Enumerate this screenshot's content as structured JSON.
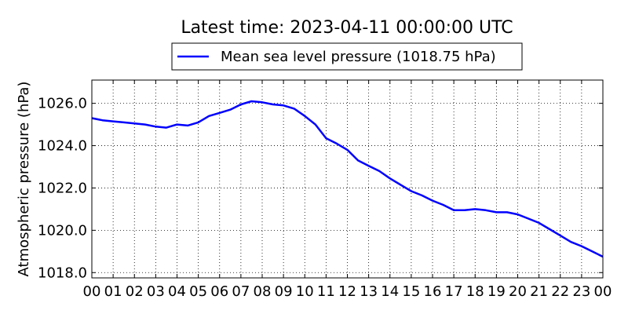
{
  "chart_data": {
    "type": "line",
    "title": "Latest time: 2023-04-11 00:00:00 UTC",
    "xlabel": "",
    "ylabel": "Atmospheric pressure (hPa)",
    "x_tick_labels": [
      "00",
      "01",
      "02",
      "03",
      "04",
      "05",
      "06",
      "07",
      "08",
      "09",
      "10",
      "11",
      "12",
      "13",
      "14",
      "15",
      "16",
      "17",
      "18",
      "19",
      "20",
      "21",
      "22",
      "23",
      "00"
    ],
    "y_ticks": [
      1018.0,
      1020.0,
      1022.0,
      1024.0,
      1026.0
    ],
    "y_tick_labels": [
      "1018.0",
      "1020.0",
      "1022.0",
      "1024.0",
      "1026.0"
    ],
    "xlim": [
      0,
      24
    ],
    "ylim": [
      1017.75,
      1027.1
    ],
    "grid": true,
    "legend_position": "top-center",
    "series": [
      {
        "name": "Mean sea level pressure (1018.75 hPa)",
        "color": "#0000ff",
        "x": [
          0,
          0.5,
          1,
          1.5,
          2,
          2.5,
          3,
          3.5,
          4,
          4.5,
          5,
          5.5,
          6,
          6.5,
          7,
          7.5,
          8,
          8.5,
          9,
          9.5,
          10,
          10.5,
          11,
          11.5,
          12,
          12.5,
          13,
          13.5,
          14,
          14.5,
          15,
          15.5,
          16,
          16.5,
          17,
          17.5,
          18,
          18.5,
          19,
          19.5,
          20,
          20.5,
          21,
          21.5,
          22,
          22.5,
          23,
          23.5,
          24
        ],
        "values": [
          1025.3,
          1025.2,
          1025.15,
          1025.1,
          1025.05,
          1025.0,
          1024.9,
          1024.85,
          1025.0,
          1024.95,
          1025.1,
          1025.4,
          1025.55,
          1025.7,
          1025.95,
          1026.1,
          1026.05,
          1025.95,
          1025.9,
          1025.75,
          1025.4,
          1025.0,
          1024.35,
          1024.1,
          1023.8,
          1023.3,
          1023.05,
          1022.8,
          1022.45,
          1022.15,
          1021.85,
          1021.65,
          1021.4,
          1021.2,
          1020.95,
          1020.95,
          1021.0,
          1020.95,
          1020.85,
          1020.85,
          1020.75,
          1020.55,
          1020.35,
          1020.05,
          1019.75,
          1019.45,
          1019.25,
          1019.0,
          1018.75
        ]
      }
    ]
  }
}
